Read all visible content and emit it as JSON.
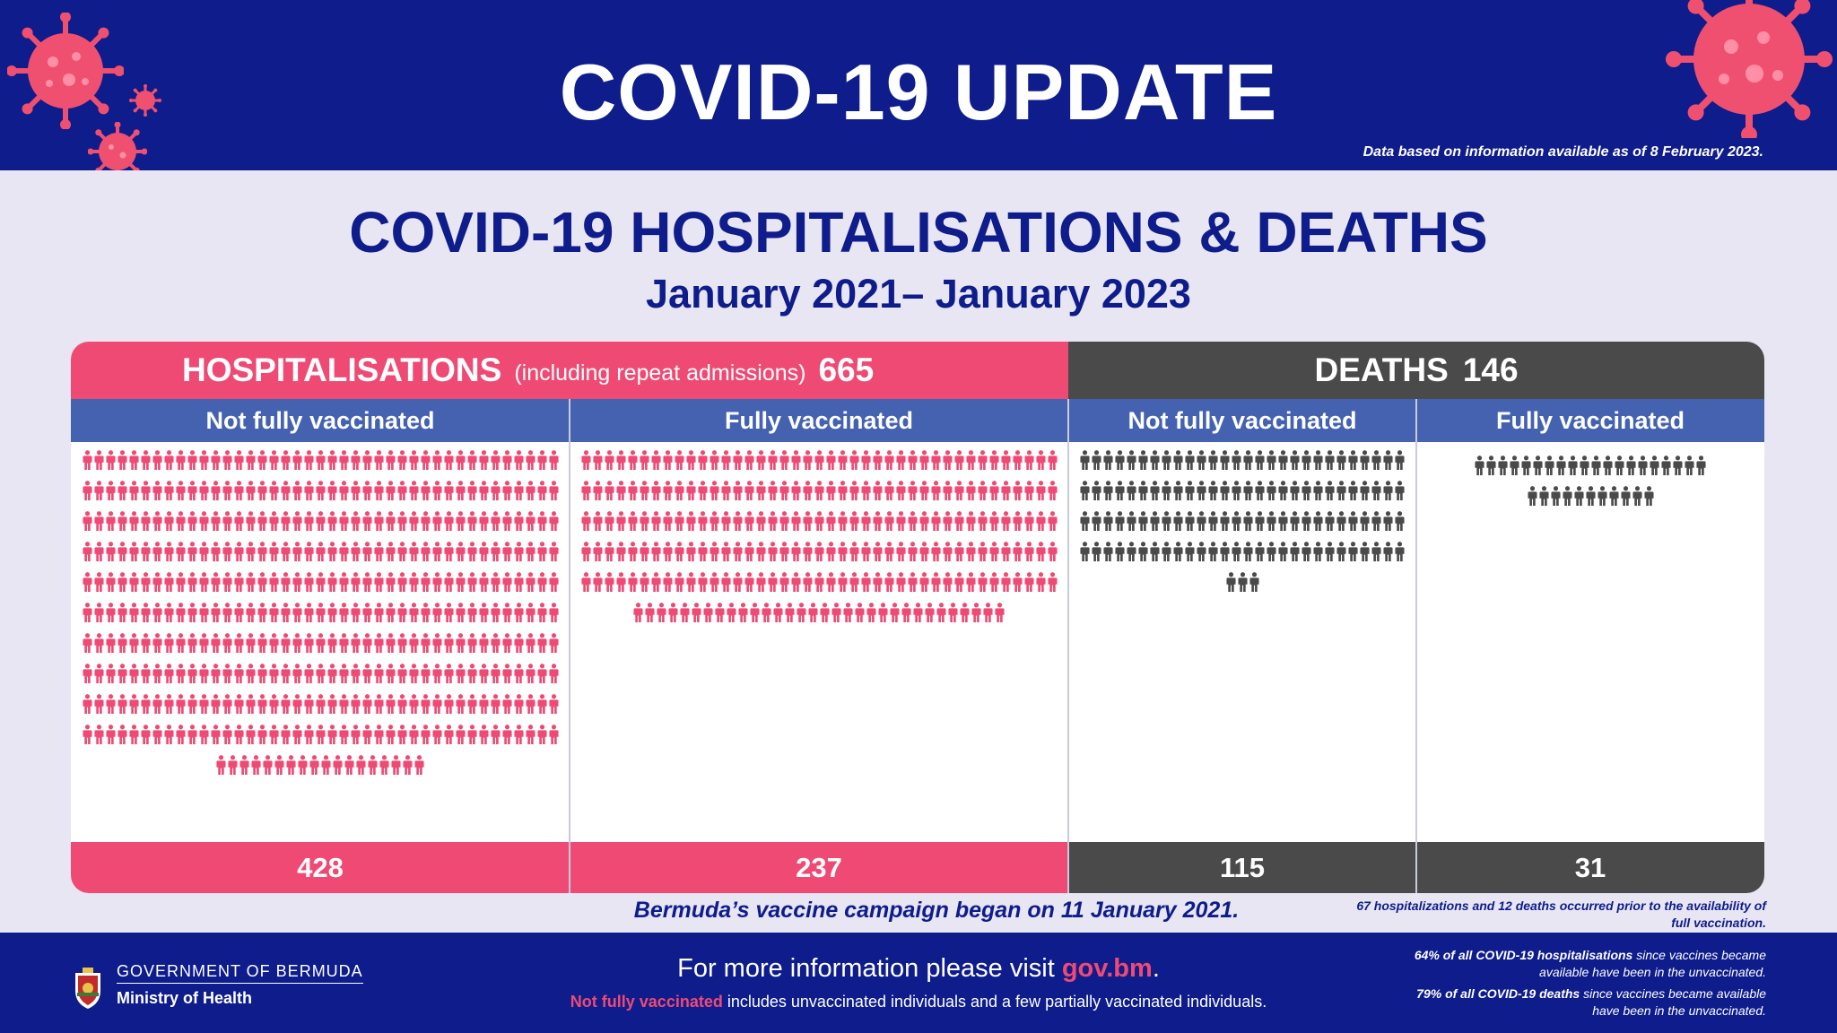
{
  "header": {
    "title": "COVID-19 UPDATE",
    "data_note": "Data based on information available as of 8 February 2023."
  },
  "section": {
    "title": "COVID-19 HOSPITALISATIONS & DEATHS",
    "subtitle": "January 2021– January 2023"
  },
  "hospitalisations": {
    "label": "HOSPITALISATIONS",
    "sublabel": "(including repeat admissions)",
    "total": "665",
    "columns": [
      {
        "header": "Not fully vaccinated",
        "count": "428",
        "icons": 428
      },
      {
        "header": "Fully vaccinated",
        "count": "237",
        "icons": 237
      }
    ]
  },
  "deaths": {
    "label": "DEATHS",
    "total": "146",
    "columns": [
      {
        "header": "Not fully vaccinated",
        "count": "115",
        "icons": 115
      },
      {
        "header": "Fully vaccinated",
        "count": "31",
        "icons": 31
      }
    ]
  },
  "notes": {
    "campaign": "Bermuda’s vaccine campaign began on 11 January 2021.",
    "prior": "67 hospitalizations and 12 deaths occurred prior to the availability of full vaccination."
  },
  "footer": {
    "gov_name": "GOVERNMENT OF BERMUDA",
    "ministry": "Ministry of Health",
    "more_info_prefix": "For more information please visit ",
    "more_info_link": "gov.bm",
    "more_info_suffix": ".",
    "definition_term": "Not fully vaccinated",
    "definition_text": " includes unvaccinated individuals and a few partially vaccinated individuals.",
    "stat1_bold": "64% of all COVID-19 hospitalisations",
    "stat1_text": " since vaccines became available have been in the unvaccinated.",
    "stat2_bold": "79% of all COVID-19 deaths",
    "stat2_text": " since vaccines became available have been in the unvaccinated."
  },
  "colors": {
    "navy": "#0e1c8c",
    "pink": "#ee4a73",
    "dark_gray": "#4a4a4a",
    "column_header_blue": "#4462b0",
    "background": "#e8e6f2"
  },
  "icons": {
    "person": "person-icon",
    "virus": "virus-icon",
    "coat_of_arms": "coat-of-arms-icon"
  }
}
